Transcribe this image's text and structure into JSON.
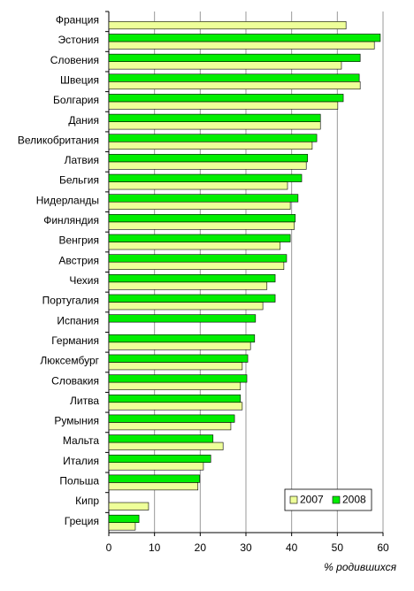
{
  "chart_data": {
    "type": "bar",
    "orientation": "horizontal",
    "categories": [
      "Франция",
      "Эстония",
      "Словения",
      "Швеция",
      "Болгария",
      "Дания",
      "Великобритания",
      "Латвия",
      "Бельгия",
      "Нидерланды",
      "Финляндия",
      "Венгрия",
      "Австрия",
      "Чехия",
      "Португалия",
      "Испания",
      "Германия",
      "Люксембург",
      "Словакия",
      "Литва",
      "Румыния",
      "Мальта",
      "Италия",
      "Польша",
      "Кипр",
      "Греция"
    ],
    "series": [
      {
        "name": "2007",
        "color": "#eeff99",
        "values": [
          51.9,
          58.1,
          50.9,
          55.0,
          50.1,
          46.3,
          44.5,
          43.2,
          39.1,
          39.7,
          40.6,
          37.5,
          38.3,
          34.6,
          33.7,
          null,
          31.0,
          29.2,
          28.8,
          29.2,
          26.7,
          25.0,
          20.7,
          19.5,
          8.7,
          5.8
        ]
      },
      {
        "name": "2008",
        "color": "#00ee00",
        "values": [
          null,
          59.4,
          55.0,
          54.8,
          51.3,
          46.3,
          45.5,
          43.5,
          42.2,
          41.4,
          40.8,
          39.7,
          38.9,
          36.4,
          36.4,
          32.1,
          31.9,
          30.4,
          30.2,
          28.8,
          27.5,
          22.8,
          22.3,
          19.9,
          null,
          6.6
        ]
      }
    ],
    "xlabel": "% родившихся",
    "xlim": [
      0,
      60
    ],
    "xticks": [
      0,
      10,
      20,
      30,
      40,
      50,
      60
    ],
    "grid": true,
    "legend": "lower right"
  }
}
